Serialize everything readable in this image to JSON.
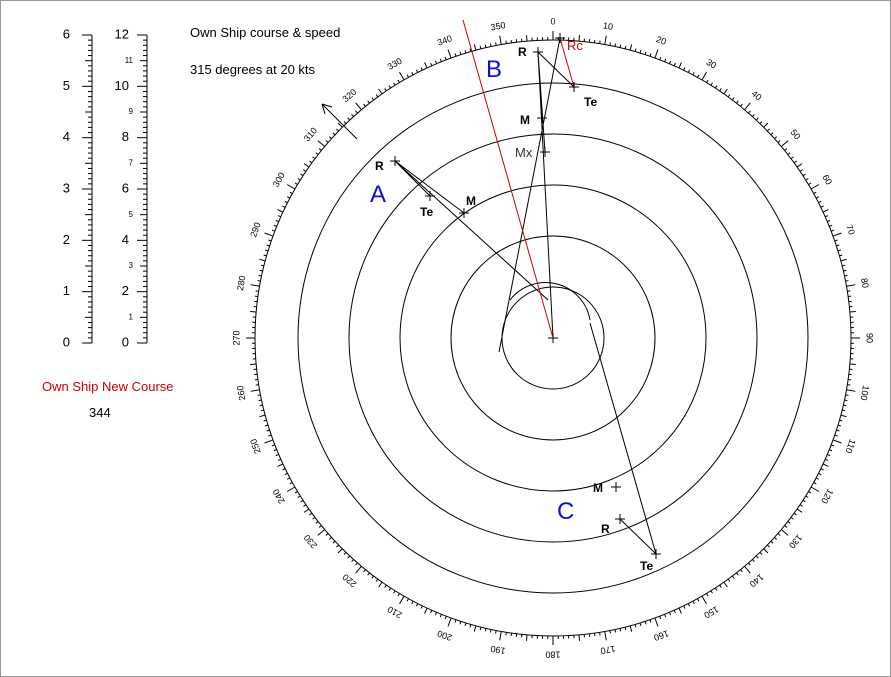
{
  "header": {
    "title": "Own Ship course & speed",
    "subtitle": "315 degrees at 20 kts"
  },
  "new_course": {
    "label": "Own Ship New Course",
    "value": "344"
  },
  "scales": {
    "left": [
      0,
      1,
      2,
      3,
      4,
      5,
      6
    ],
    "right_major": [
      0,
      2,
      4,
      6,
      8,
      10,
      12
    ],
    "right_minor": [
      1,
      3,
      5,
      7,
      9,
      11
    ]
  },
  "bearings": [
    0,
    10,
    20,
    30,
    40,
    50,
    60,
    70,
    80,
    90,
    100,
    110,
    120,
    130,
    140,
    150,
    160,
    170,
    180,
    190,
    200,
    210,
    220,
    230,
    240,
    250,
    260,
    270,
    280,
    290,
    300,
    310,
    320,
    330,
    340,
    350
  ],
  "targets": [
    {
      "name": "A",
      "points": {
        "r": "R",
        "m": "M",
        "te": "Te"
      }
    },
    {
      "name": "B",
      "points": {
        "r": "R",
        "m": "M",
        "te": "Te",
        "mx": "Mx",
        "rc": "Rc"
      }
    },
    {
      "name": "C",
      "points": {
        "r": "R",
        "m": "M",
        "te": "Te"
      }
    }
  ]
}
